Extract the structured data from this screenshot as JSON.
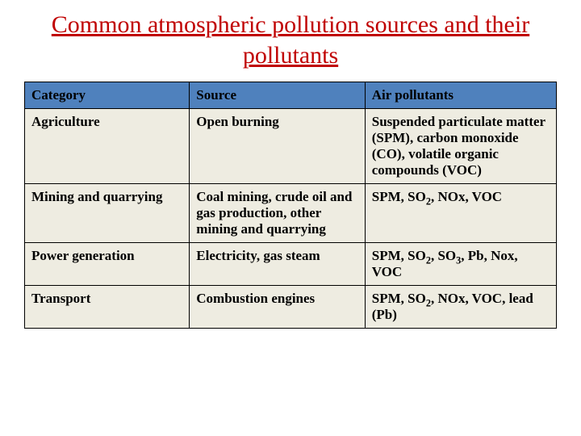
{
  "title": "Common atmospheric pollution sources and their pollutants",
  "table": {
    "headers": {
      "category": "Category",
      "source": "Source",
      "pollutants": "Air pollutants"
    },
    "rows": [
      {
        "category": "Agriculture",
        "source": "Open burning",
        "pollutants": "Suspended particulate matter (SPM), carbon monoxide (CO), volatile organic compounds (VOC)"
      },
      {
        "category": "Mining and quarrying",
        "source": "Coal mining, crude oil and gas production, other mining and quarrying",
        "pollutants": "SPM, SO<sub>2</sub>, NOx, VOC"
      },
      {
        "category": "Power generation",
        "source": "Electricity, gas steam",
        "pollutants": "SPM, SO<sub>2</sub>, SO<sub>3</sub>, Pb, Nox, VOC"
      },
      {
        "category": "Transport",
        "source": "Combustion engines",
        "pollutants": "SPM, SO<sub>2</sub>, NOx, VOC, lead (Pb)"
      }
    ],
    "colors": {
      "header_bg": "#4f81bd",
      "cell_bg": "#eeece1",
      "border": "#000000",
      "title_color": "#c00000"
    }
  }
}
